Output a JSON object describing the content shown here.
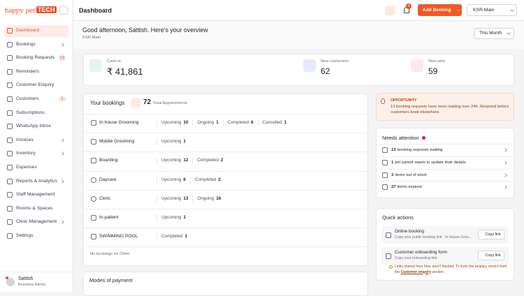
{
  "sidebar": {
    "logo": {
      "name": "happy pet",
      "tag": "TECH"
    },
    "nav": [
      {
        "label": "Dashboard"
      },
      {
        "label": "Bookings"
      },
      {
        "label": "Booking Requests",
        "badge": 13
      },
      {
        "label": "Reminders"
      },
      {
        "label": "Customer Enquiry"
      },
      {
        "label": "Customers",
        "badge": 1
      },
      {
        "label": "Subscriptions"
      },
      {
        "label": "WhatsApp Inbox"
      },
      {
        "label": "Invoices"
      },
      {
        "label": "Inventory"
      },
      {
        "label": "Expenses"
      },
      {
        "label": "Reports & Analytics"
      },
      {
        "label": "Staff Management"
      },
      {
        "label": "Rooms & Spaces"
      },
      {
        "label": "Clinic Management"
      },
      {
        "label": "Settings"
      }
    ],
    "user": {
      "name": "Sattish",
      "role": "Business Admin"
    }
  },
  "header": {
    "title": "Dashboard",
    "notifications": 4,
    "add_button": "Add Booking",
    "branch": "KSR Main"
  },
  "overview": {
    "greeting": "Good afternoon, Sattish. Here's your overview",
    "branch": "KSR Main",
    "period": "This Month"
  },
  "stats": [
    {
      "label": "Cash-in",
      "value": "₹ 41,861"
    },
    {
      "label": "New customers",
      "value": 62
    },
    {
      "label": "New pets",
      "value": 59
    }
  ],
  "bookings": {
    "title": "Your bookings",
    "total": 72,
    "total_label": "Total Appointments",
    "rows": [
      {
        "service": "In-house Grooming",
        "counts": [
          {
            "label": "Upcoming",
            "value": 10
          },
          {
            "label": "Ongoing",
            "value": 1
          },
          {
            "label": "Completed",
            "value": 6
          },
          {
            "label": "Cancelled",
            "value": 1
          }
        ]
      },
      {
        "service": "Mobile Grooming",
        "counts": [
          {
            "label": "Upcoming",
            "value": 1
          }
        ]
      },
      {
        "service": "Boarding",
        "counts": [
          {
            "label": "Upcoming",
            "value": 12
          },
          {
            "label": "Completed",
            "value": 2
          }
        ]
      },
      {
        "service": "Daycare",
        "counts": [
          {
            "label": "Upcoming",
            "value": 6
          },
          {
            "label": "Completed",
            "value": 2
          }
        ]
      },
      {
        "service": "Clinic",
        "counts": [
          {
            "label": "Upcoming",
            "value": 13
          },
          {
            "label": "Ongoing",
            "value": 16
          }
        ]
      },
      {
        "service": "In-patient",
        "counts": [
          {
            "label": "Upcoming",
            "value": 1
          }
        ]
      },
      {
        "service": "SWIMMING POOL",
        "counts": [
          {
            "label": "Completed",
            "value": 1
          }
        ]
      }
    ],
    "empty": "No bookings for Other"
  },
  "payments": {
    "title": "Modes of payment"
  },
  "opportunity": {
    "tag": "OPPORTUNITY",
    "message": "13 booking requests have been waiting over 24h. Respond before customers book elsewhere."
  },
  "attention": {
    "title": "Needs attention",
    "items": [
      {
        "count": 13,
        "text": "booking requests waiting"
      },
      {
        "count": 1,
        "text": "pet parent wants to update their details"
      },
      {
        "count": 3,
        "text": "items out of stock"
      },
      {
        "count": 27,
        "text": "items expired"
      }
    ]
  },
  "quick_actions": {
    "title": "Quick actions",
    "items": [
      {
        "title": "Online booking",
        "subtitle": "Copy your public booking link · In House Grou...",
        "button": "Copy link"
      },
      {
        "title": "Customer onboarding form",
        "subtitle": "Copy your onboarding link",
        "button": "Copy link"
      }
    ],
    "note_before": "Links shared from here aren't tracked. To track the enquiry, send it from the",
    "note_link": "Customer enquiry",
    "note_after": "section."
  }
}
